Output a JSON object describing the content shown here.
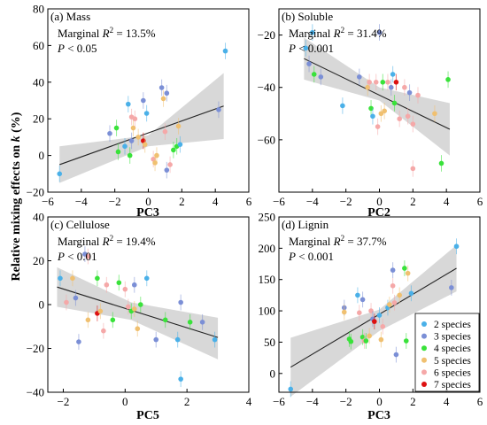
{
  "figure": {
    "ylabel": "Relative mixing effects on k (%)",
    "ylabel_parts": [
      "Relative mixing effects on ",
      "k",
      " (%)"
    ]
  },
  "species_colors": {
    "2": "#4ab0e8",
    "3": "#7b8fd6",
    "4": "#39e23a",
    "5": "#f0c070",
    "6": "#f5a8a8",
    "7": "#dd1111"
  },
  "legend": {
    "position": "bottom-right",
    "items": [
      {
        "key": "2",
        "label": "2 species"
      },
      {
        "key": "3",
        "label": "3 species"
      },
      {
        "key": "4",
        "label": "4 species"
      },
      {
        "key": "5",
        "label": "5 species"
      },
      {
        "key": "6",
        "label": "6 species"
      },
      {
        "key": "7",
        "label": "7 species"
      }
    ]
  },
  "chart_data": [
    {
      "type": "scatter",
      "panel": "(a) Mass",
      "xlabel": "PC3",
      "r2_text": "Marginal R² = 13.5%",
      "p_text": "P < 0.05",
      "xlim": [
        -6,
        6
      ],
      "ylim": [
        -20,
        80
      ],
      "xticks": [
        -6,
        -4,
        -2,
        0,
        2,
        4,
        6
      ],
      "yticks": [
        -20,
        0,
        20,
        40,
        60,
        80
      ],
      "fit": {
        "x": [
          -5.3,
          4.5
        ],
        "y": [
          -5,
          27
        ]
      },
      "ci_band": {
        "x": [
          -5.3,
          0,
          4.5
        ],
        "upper": [
          5,
          11,
          45
        ],
        "lower": [
          -15,
          5,
          9
        ]
      },
      "points": [
        {
          "x": -5.3,
          "y": -10,
          "s": 2
        },
        {
          "x": -2.3,
          "y": 12,
          "s": 3
        },
        {
          "x": -1.9,
          "y": 15,
          "s": 4
        },
        {
          "x": -1.8,
          "y": 2,
          "s": 4
        },
        {
          "x": -1.4,
          "y": 5,
          "s": 2
        },
        {
          "x": -1.2,
          "y": 28,
          "s": 2
        },
        {
          "x": -1.1,
          "y": 0,
          "s": 4
        },
        {
          "x": -1.0,
          "y": 21,
          "s": 6
        },
        {
          "x": -1.0,
          "y": 8,
          "s": 3
        },
        {
          "x": -0.9,
          "y": 15,
          "s": 5
        },
        {
          "x": -0.8,
          "y": 20,
          "s": 6
        },
        {
          "x": -0.6,
          "y": 10,
          "s": 5
        },
        {
          "x": -0.3,
          "y": 30,
          "s": 3
        },
        {
          "x": -0.3,
          "y": 8,
          "s": 7
        },
        {
          "x": -0.2,
          "y": 6,
          "s": 5
        },
        {
          "x": -0.1,
          "y": 23,
          "s": 2
        },
        {
          "x": 0.3,
          "y": -2,
          "s": 6
        },
        {
          "x": 0.4,
          "y": -4,
          "s": 5
        },
        {
          "x": 0.5,
          "y": 0,
          "s": 5
        },
        {
          "x": 0.8,
          "y": 37,
          "s": 3
        },
        {
          "x": 0.9,
          "y": 31,
          "s": 5
        },
        {
          "x": 1.0,
          "y": 13,
          "s": 6
        },
        {
          "x": 1.1,
          "y": 34,
          "s": 3
        },
        {
          "x": 1.1,
          "y": -8,
          "s": 3
        },
        {
          "x": 1.3,
          "y": -5,
          "s": 6
        },
        {
          "x": 1.5,
          "y": 3,
          "s": 4
        },
        {
          "x": 1.7,
          "y": 5,
          "s": 4
        },
        {
          "x": 1.8,
          "y": 16,
          "s": 5
        },
        {
          "x": 1.9,
          "y": 6,
          "s": 2
        },
        {
          "x": 4.2,
          "y": 25,
          "s": 3
        },
        {
          "x": 4.6,
          "y": 57,
          "s": 2
        }
      ]
    },
    {
      "type": "scatter",
      "panel": "(b) Soluble",
      "xlabel": "PC2",
      "r2_text": "Marginal R² = 31.4%",
      "p_text": "P < 0.001",
      "xlim": [
        -6,
        6
      ],
      "ylim": [
        -80,
        -10
      ],
      "xticks": [
        -6,
        -4,
        -2,
        0,
        2,
        4,
        6
      ],
      "yticks": [
        -60,
        -40,
        -20
      ],
      "fit": {
        "x": [
          -4.5,
          4.2
        ],
        "y": [
          -29,
          -56
        ]
      },
      "ci_band": {
        "x": [
          -4.5,
          0,
          4.2
        ],
        "upper": [
          -21,
          -40,
          -46
        ],
        "lower": [
          -37,
          -45,
          -66
        ]
      },
      "points": [
        {
          "x": -4.4,
          "y": -25,
          "s": 2
        },
        {
          "x": -4.2,
          "y": -31,
          "s": 3
        },
        {
          "x": -4.0,
          "y": -19,
          "s": 2
        },
        {
          "x": -3.9,
          "y": -35,
          "s": 4
        },
        {
          "x": -3.5,
          "y": -36,
          "s": 3
        },
        {
          "x": -2.2,
          "y": -47,
          "s": 2
        },
        {
          "x": -1.2,
          "y": -36,
          "s": 3
        },
        {
          "x": -0.7,
          "y": -40,
          "s": 5
        },
        {
          "x": -0.6,
          "y": -38,
          "s": 6
        },
        {
          "x": -0.5,
          "y": -48,
          "s": 4
        },
        {
          "x": -0.4,
          "y": -51,
          "s": 2
        },
        {
          "x": -0.2,
          "y": -38,
          "s": 6
        },
        {
          "x": -0.1,
          "y": -55,
          "s": 6
        },
        {
          "x": 0.0,
          "y": -19,
          "s": 3
        },
        {
          "x": 0.1,
          "y": -50,
          "s": 5
        },
        {
          "x": 0.2,
          "y": -38,
          "s": 4
        },
        {
          "x": 0.3,
          "y": -49,
          "s": 5
        },
        {
          "x": 0.5,
          "y": -38,
          "s": 6
        },
        {
          "x": 0.7,
          "y": -40,
          "s": 3
        },
        {
          "x": 0.8,
          "y": -35,
          "s": 2
        },
        {
          "x": 0.9,
          "y": -46,
          "s": 4
        },
        {
          "x": 1.0,
          "y": -38,
          "s": 7
        },
        {
          "x": 1.2,
          "y": -52,
          "s": 6
        },
        {
          "x": 1.5,
          "y": -40,
          "s": 6
        },
        {
          "x": 1.7,
          "y": -51,
          "s": 6
        },
        {
          "x": 1.8,
          "y": -42,
          "s": 3
        },
        {
          "x": 2.0,
          "y": -54,
          "s": 6
        },
        {
          "x": 2.0,
          "y": -71,
          "s": 6
        },
        {
          "x": 2.3,
          "y": -43,
          "s": 6
        },
        {
          "x": 3.3,
          "y": -50,
          "s": 5
        },
        {
          "x": 3.7,
          "y": -69,
          "s": 4
        },
        {
          "x": 4.1,
          "y": -37,
          "s": 4
        }
      ]
    },
    {
      "type": "scatter",
      "panel": "(c) Cellulose",
      "xlabel": "PC5",
      "r2_text": "Marginal R² = 19.4%",
      "p_text": "P < 0.01",
      "xlim": [
        -2.5,
        4
      ],
      "ylim": [
        -40,
        40
      ],
      "xticks": [
        -2,
        0,
        2,
        4
      ],
      "yticks": [
        -40,
        -20,
        0,
        20,
        40
      ],
      "fit": {
        "x": [
          -2.2,
          3.0
        ],
        "y": [
          8,
          -15
        ]
      },
      "ci_band": {
        "x": [
          -2.2,
          0.2,
          3.0
        ],
        "upper": [
          17,
          1,
          -6
        ],
        "lower": [
          -1,
          -7,
          -25
        ]
      },
      "points": [
        {
          "x": -2.1,
          "y": 12,
          "s": 2
        },
        {
          "x": -1.9,
          "y": 1,
          "s": 6
        },
        {
          "x": -1.7,
          "y": 12,
          "s": 5
        },
        {
          "x": -1.6,
          "y": 3,
          "s": 3
        },
        {
          "x": -1.5,
          "y": -17,
          "s": 3
        },
        {
          "x": -1.3,
          "y": 23,
          "s": 3
        },
        {
          "x": -1.2,
          "y": 22,
          "s": 6
        },
        {
          "x": -1.2,
          "y": -7,
          "s": 5
        },
        {
          "x": -0.9,
          "y": 12,
          "s": 4
        },
        {
          "x": -0.9,
          "y": -4,
          "s": 7
        },
        {
          "x": -0.8,
          "y": -3,
          "s": 5
        },
        {
          "x": -0.7,
          "y": -12,
          "s": 6
        },
        {
          "x": -0.6,
          "y": 9,
          "s": 6
        },
        {
          "x": -0.4,
          "y": -7,
          "s": 4
        },
        {
          "x": -0.2,
          "y": 10,
          "s": 4
        },
        {
          "x": 0.0,
          "y": 7,
          "s": 6
        },
        {
          "x": 0.1,
          "y": -1,
          "s": 6
        },
        {
          "x": 0.2,
          "y": -3,
          "s": 4
        },
        {
          "x": 0.3,
          "y": 9,
          "s": 3
        },
        {
          "x": 0.3,
          "y": -2,
          "s": 5
        },
        {
          "x": 0.4,
          "y": -11,
          "s": 5
        },
        {
          "x": 0.5,
          "y": 0,
          "s": 4
        },
        {
          "x": 0.7,
          "y": 12,
          "s": 2
        },
        {
          "x": 1.0,
          "y": -16,
          "s": 3
        },
        {
          "x": 1.3,
          "y": -7,
          "s": 4
        },
        {
          "x": 1.7,
          "y": -16,
          "s": 2
        },
        {
          "x": 1.8,
          "y": 1,
          "s": 3
        },
        {
          "x": 1.8,
          "y": -34,
          "s": 2
        },
        {
          "x": 2.1,
          "y": -8,
          "s": 4
        },
        {
          "x": 2.5,
          "y": -8,
          "s": 3
        },
        {
          "x": 2.9,
          "y": -16,
          "s": 2
        }
      ]
    },
    {
      "type": "scatter",
      "panel": "(d) Lignin",
      "xlabel": "PC3",
      "r2_text": "Marginal R² = 37.7%",
      "p_text": "P < 0.001",
      "xlim": [
        -6,
        6
      ],
      "ylim": [
        -30,
        250
      ],
      "xticks": [
        -6,
        -4,
        -2,
        0,
        2,
        4,
        6
      ],
      "yticks": [
        0,
        50,
        100,
        150,
        200,
        250
      ],
      "fit": {
        "x": [
          -5.3,
          4.6
        ],
        "y": [
          10,
          168
        ]
      },
      "ci_band": {
        "x": [
          -5.3,
          0,
          4.6
        ],
        "upper": [
          57,
          102,
          205
        ],
        "lower": [
          -37,
          68,
          131
        ]
      },
      "points": [
        {
          "x": -5.3,
          "y": -25,
          "s": 2
        },
        {
          "x": -2.1,
          "y": 105,
          "s": 3
        },
        {
          "x": -2.1,
          "y": 98,
          "s": 5
        },
        {
          "x": -1.8,
          "y": 55,
          "s": 4
        },
        {
          "x": -1.7,
          "y": 51,
          "s": 4
        },
        {
          "x": -1.3,
          "y": 125,
          "s": 2
        },
        {
          "x": -1.2,
          "y": 97,
          "s": 6
        },
        {
          "x": -1.0,
          "y": 118,
          "s": 3
        },
        {
          "x": -1.0,
          "y": 58,
          "s": 4
        },
        {
          "x": -0.9,
          "y": 52,
          "s": 6
        },
        {
          "x": -0.8,
          "y": 52,
          "s": 4
        },
        {
          "x": -0.6,
          "y": 60,
          "s": 5
        },
        {
          "x": -0.5,
          "y": 100,
          "s": 6
        },
        {
          "x": -0.4,
          "y": 87,
          "s": 3
        },
        {
          "x": -0.3,
          "y": 83,
          "s": 7
        },
        {
          "x": 0.0,
          "y": 93,
          "s": 2
        },
        {
          "x": 0.1,
          "y": 54,
          "s": 5
        },
        {
          "x": 0.2,
          "y": 75,
          "s": 6
        },
        {
          "x": 0.5,
          "y": 105,
          "s": 2
        },
        {
          "x": 0.6,
          "y": 110,
          "s": 5
        },
        {
          "x": 0.8,
          "y": 165,
          "s": 3
        },
        {
          "x": 0.8,
          "y": 140,
          "s": 6
        },
        {
          "x": 0.9,
          "y": 113,
          "s": 6
        },
        {
          "x": 1.0,
          "y": 30,
          "s": 3
        },
        {
          "x": 1.2,
          "y": 125,
          "s": 5
        },
        {
          "x": 1.5,
          "y": 168,
          "s": 4
        },
        {
          "x": 1.6,
          "y": 52,
          "s": 4
        },
        {
          "x": 1.7,
          "y": 160,
          "s": 5
        },
        {
          "x": 1.9,
          "y": 128,
          "s": 2
        },
        {
          "x": 4.3,
          "y": 137,
          "s": 3
        },
        {
          "x": 4.6,
          "y": 203,
          "s": 2
        }
      ]
    }
  ]
}
